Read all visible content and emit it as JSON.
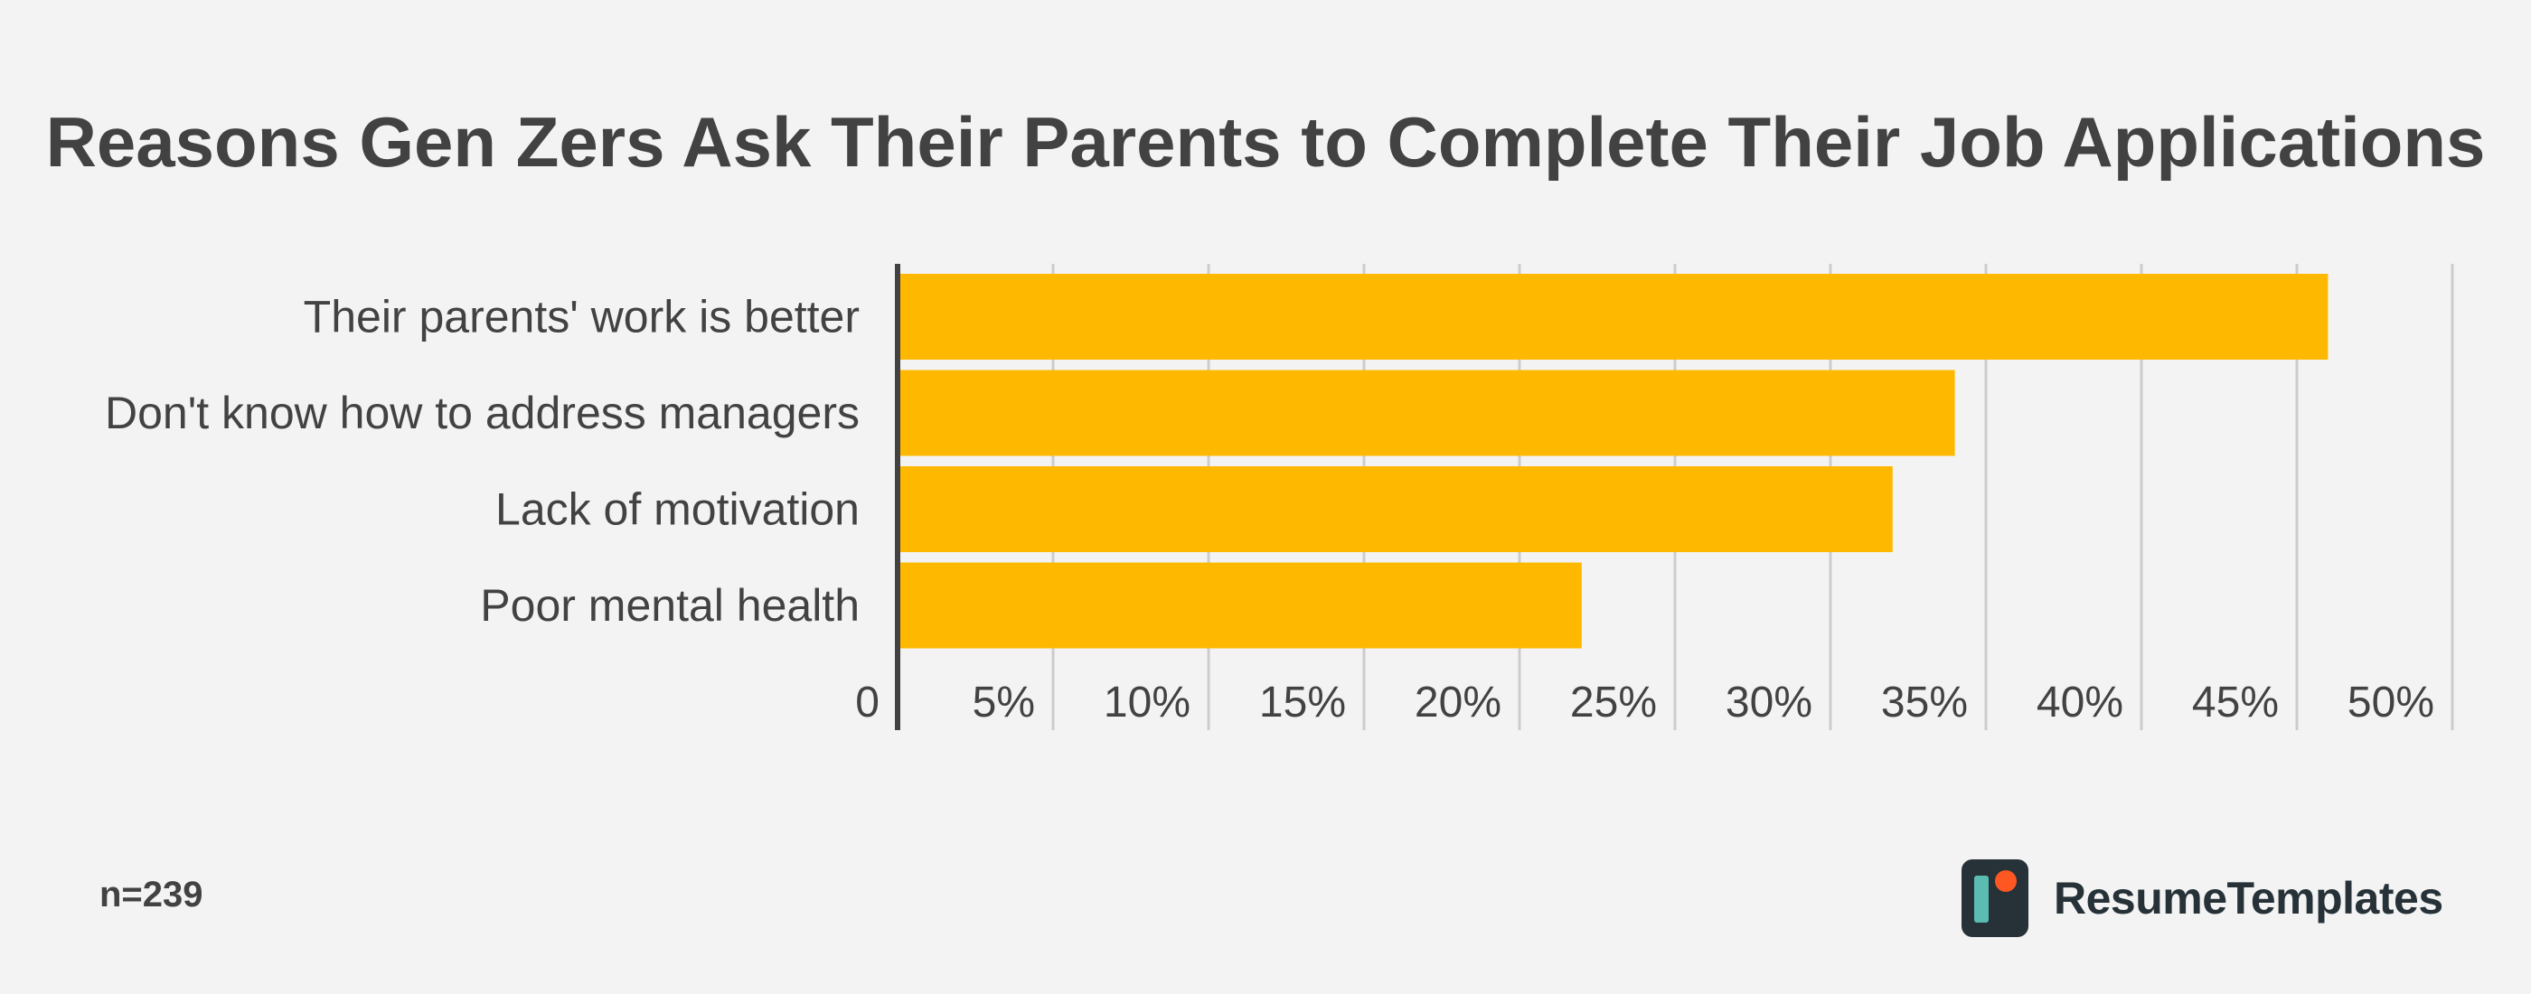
{
  "chart_data": {
    "type": "bar",
    "orientation": "horizontal",
    "title": "Reasons Gen Zers Ask Their Parents to Complete Their Job Applications",
    "categories": [
      "Their parents' work is better",
      "Don't know how to address managers",
      "Lack of motivation",
      "Poor mental health"
    ],
    "values": [
      46,
      34,
      32,
      22
    ],
    "xlim": [
      0,
      50
    ],
    "ticks": [
      0,
      5,
      10,
      15,
      20,
      25,
      30,
      35,
      40,
      45,
      50
    ],
    "tick_labels": [
      "0",
      "5%",
      "10%",
      "15%",
      "20%",
      "25%",
      "30%",
      "35%",
      "40%",
      "45%",
      "50%"
    ],
    "grid": true,
    "bar_color": "#ffb800",
    "grid_color": "#cccccc",
    "axis_color": "#424242"
  },
  "footer": {
    "sample_note": "n=239",
    "brand_name": "ResumeTemplates"
  },
  "colors": {
    "background": "#f3f3f3",
    "text": "#424242",
    "brand_dark": "#263238",
    "brand_teal": "#5bbcb1",
    "brand_orange": "#ff5722"
  },
  "icons": {
    "brand_logo": "resumetemplates-logo-icon"
  }
}
